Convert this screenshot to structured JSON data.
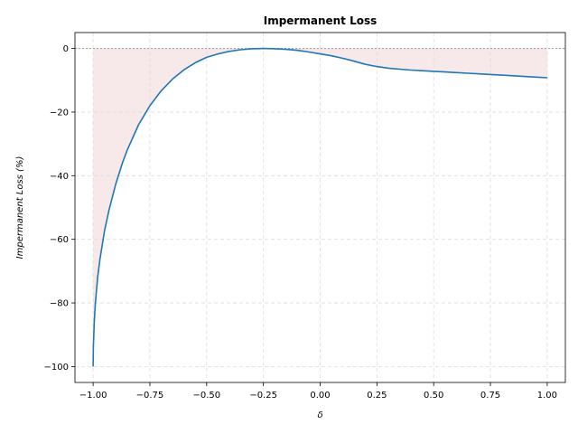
{
  "chart_data": {
    "type": "area",
    "title": "Impermanent Loss",
    "xlabel": "δ",
    "ylabel": "Impermanent Loss (%)",
    "xlim": [
      -1.08,
      1.08
    ],
    "ylim": [
      -105,
      5
    ],
    "xticks": [
      -1.0,
      -0.75,
      -0.5,
      -0.25,
      0.0,
      0.25,
      0.5,
      0.75,
      1.0
    ],
    "xtick_labels": [
      "−1.00",
      "−0.75",
      "−0.50",
      "−0.25",
      "0.00",
      "0.25",
      "0.50",
      "0.75",
      "1.00"
    ],
    "yticks": [
      -100,
      -80,
      -60,
      -40,
      -20,
      0
    ],
    "ytick_labels": [
      "−100",
      "−80",
      "−60",
      "−40",
      "−20",
      "0"
    ],
    "grid": true,
    "reference_line_y": 0,
    "series": [
      {
        "x": [
          -1.0,
          -0.999,
          -0.995,
          -0.99,
          -0.98,
          -0.97,
          -0.95,
          -0.93,
          -0.9,
          -0.87,
          -0.85,
          -0.8,
          -0.75,
          -0.7,
          -0.65,
          -0.6,
          -0.55,
          -0.5,
          -0.45,
          -0.4,
          -0.35,
          -0.3,
          -0.25,
          -0.2,
          -0.15,
          -0.1,
          -0.05,
          0.0,
          0.05,
          0.1,
          0.15,
          0.2,
          0.25,
          0.3,
          0.35,
          0.4,
          0.45,
          0.5,
          0.55,
          0.6,
          0.65,
          0.7,
          0.75,
          0.8,
          0.85,
          0.9,
          0.95,
          1.0
        ],
        "y": [
          -100.0,
          -93.7,
          -85.9,
          -80.1,
          -72.0,
          -66.2,
          -57.4,
          -50.8,
          -42.5,
          -35.8,
          -32.0,
          -24.0,
          -18.0,
          -13.3,
          -9.6,
          -6.7,
          -4.5,
          -2.8,
          -1.7,
          -0.9,
          -0.4,
          -0.1,
          0.0,
          -0.1,
          -0.3,
          -0.6,
          -1.1,
          -1.7,
          -2.3,
          -3.1,
          -4.0,
          -5.0,
          -5.7,
          -6.2,
          -6.5,
          -6.8,
          -7.0,
          -7.2,
          -7.4,
          -7.6,
          -7.8,
          -8.0,
          -8.2,
          -8.4,
          -8.6,
          -8.8,
          -9.0,
          -9.2
        ],
        "color": "#1f77b4"
      }
    ],
    "fill_color": "#c44e52"
  }
}
